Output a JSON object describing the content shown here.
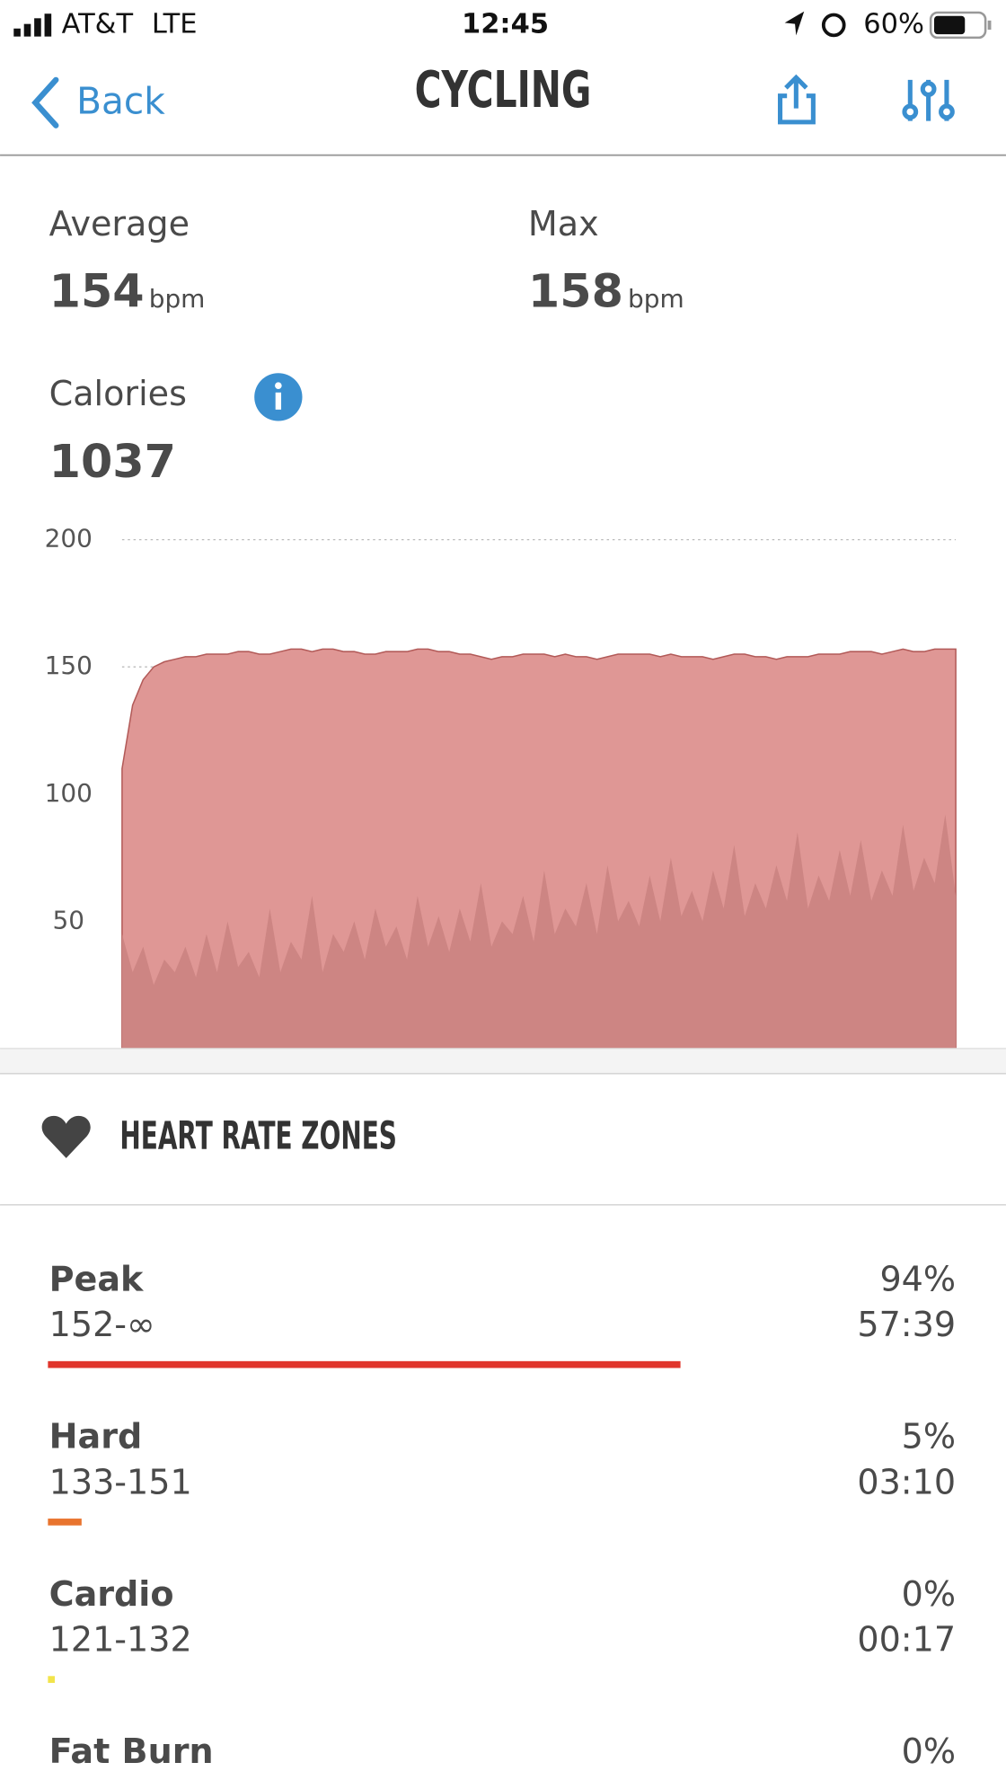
{
  "status_bar": {
    "carrier": "AT&T",
    "network": "LTE",
    "time": "12:45",
    "battery": "60%"
  },
  "nav": {
    "back": "Back",
    "title": "CYCLING"
  },
  "stats": {
    "average": {
      "label": "Average",
      "value": "154",
      "unit": "bpm"
    },
    "max": {
      "label": "Max",
      "value": "158",
      "unit": "bpm"
    },
    "calories": {
      "label": "Calories",
      "value": "1037"
    }
  },
  "chart_data": {
    "type": "area",
    "ylim": [
      0,
      200
    ],
    "yticks": [
      200,
      150,
      100,
      50
    ],
    "grid": true,
    "series": [
      {
        "color": "#df9795",
        "values": [
          110,
          135,
          145,
          150,
          152,
          153,
          154,
          154,
          155,
          155,
          155,
          156,
          156,
          155,
          155,
          156,
          157,
          157,
          156,
          157,
          157,
          156,
          156,
          155,
          155,
          156,
          156,
          156,
          157,
          157,
          156,
          156,
          155,
          155,
          154,
          153,
          154,
          154,
          155,
          155,
          155,
          154,
          155,
          154,
          154,
          153,
          154,
          155,
          155,
          155,
          155,
          154,
          155,
          154,
          154,
          154,
          153,
          154,
          155,
          155,
          154,
          154,
          153,
          154,
          154,
          154,
          155,
          155,
          155,
          156,
          156,
          156,
          155,
          156,
          157,
          156,
          156,
          157,
          157,
          157
        ]
      },
      {
        "color": "#cd8583",
        "values": [
          45,
          30,
          40,
          25,
          35,
          30,
          40,
          28,
          45,
          30,
          50,
          32,
          38,
          28,
          55,
          30,
          42,
          35,
          60,
          30,
          45,
          38,
          50,
          35,
          55,
          40,
          48,
          35,
          60,
          40,
          52,
          38,
          55,
          42,
          65,
          40,
          50,
          45,
          60,
          42,
          70,
          45,
          55,
          48,
          65,
          45,
          72,
          50,
          58,
          48,
          68,
          50,
          75,
          52,
          62,
          50,
          70,
          55,
          80,
          52,
          65,
          55,
          72,
          58,
          85,
          55,
          68,
          58,
          78,
          60,
          82,
          58,
          70,
          60,
          88,
          62,
          75,
          65,
          92,
          60
        ]
      }
    ]
  },
  "zones_section": {
    "title": "HEART RATE ZONES"
  },
  "zones": [
    {
      "name": "Peak",
      "range": "152-∞",
      "percent": {
        "value": 94,
        "label": "94%"
      },
      "time": "57:39",
      "color": "#e0352b"
    },
    {
      "name": "Hard",
      "range": "133-151",
      "percent": {
        "value": 5,
        "label": "5%"
      },
      "time": "03:10",
      "color": "#e8742e"
    },
    {
      "name": "Cardio",
      "range": "121-132",
      "percent": {
        "value": 0,
        "label": "0%"
      },
      "time": "00:17",
      "color": "#f2e44a"
    },
    {
      "name": "Fat Burn",
      "percent": {
        "value": 0,
        "label": "0%"
      }
    }
  ]
}
